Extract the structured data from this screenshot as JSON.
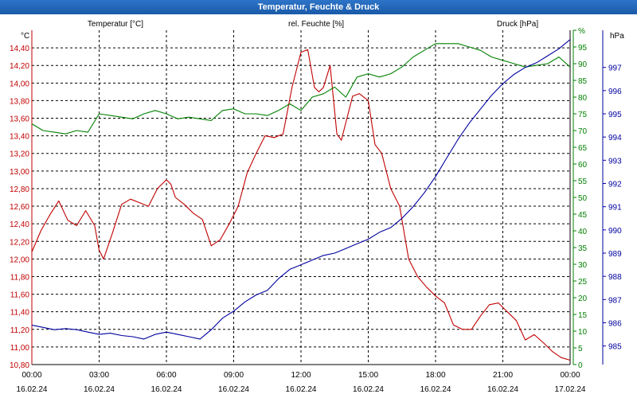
{
  "chart_data": {
    "type": "line",
    "title": "Temperatur, Feuchte & Druck",
    "axis_labels": {
      "temperature": "Temperatur [°C]",
      "humidity": "rel. Feuchte [%]",
      "pressure": "Druck [hPa]",
      "temp_unit": "°C",
      "pressure_unit": "hPa"
    },
    "x_ticks": [
      {
        "time": "00:00",
        "date": "16.02.24"
      },
      {
        "time": "03:00",
        "date": "16.02.24"
      },
      {
        "time": "06:00",
        "date": "16.02.24"
      },
      {
        "time": "09:00",
        "date": "16.02.24"
      },
      {
        "time": "12:00",
        "date": "16.02.24"
      },
      {
        "time": "15:00",
        "date": "16.02.24"
      },
      {
        "time": "18:00",
        "date": "16.02.24"
      },
      {
        "time": "21:00",
        "date": "16.02.24"
      },
      {
        "time": "00:00",
        "date": "17.02.24"
      }
    ],
    "xlim_hours": [
      0,
      24
    ],
    "temp_axis": {
      "ylim": [
        10.8,
        14.6
      ],
      "ticks": [
        "10,80",
        "11,00",
        "11,20",
        "11,40",
        "11,60",
        "11,80",
        "12,00",
        "12,20",
        "12,40",
        "12,60",
        "12,80",
        "13,00",
        "13,20",
        "13,40",
        "13,60",
        "13,80",
        "14,00",
        "14,20",
        "14,40"
      ]
    },
    "humidity_axis": {
      "ylim": [
        0,
        100
      ],
      "ticks": [
        "0",
        "5",
        "10",
        "15",
        "20",
        "25",
        "30",
        "35",
        "40",
        "45",
        "50",
        "55",
        "60",
        "65",
        "70",
        "75",
        "80",
        "85",
        "90",
        "95",
        "%"
      ]
    },
    "pressure_axis": {
      "ylim": [
        984.2,
        998.6
      ],
      "ticks": [
        "985",
        "986",
        "987",
        "988",
        "989",
        "990",
        "991",
        "992",
        "993",
        "994",
        "995",
        "996",
        "997"
      ]
    },
    "colors": {
      "temperature": "#c00000",
      "humidity": "#008000",
      "pressure": "#0000a0",
      "title_bar": "#1f62b3",
      "grid": "#000000"
    },
    "series": [
      {
        "name": "Temperatur",
        "axis": "temperature",
        "x": [
          0,
          0.4,
          0.8,
          1.2,
          1.6,
          2.0,
          2.4,
          2.8,
          3.0,
          3.2,
          3.6,
          4.0,
          4.4,
          4.8,
          5.2,
          5.6,
          6.0,
          6.2,
          6.4,
          6.8,
          7.2,
          7.6,
          8.0,
          8.4,
          8.8,
          9.2,
          9.6,
          10.0,
          10.4,
          10.8,
          11.2,
          11.6,
          12.0,
          12.3,
          12.6,
          12.8,
          13.0,
          13.3,
          13.6,
          13.8,
          14.0,
          14.3,
          14.6,
          15.0,
          15.3,
          15.6,
          16.0,
          16.4,
          16.8,
          17.2,
          17.6,
          18.0,
          18.4,
          18.8,
          19.2,
          19.6,
          20.0,
          20.4,
          20.8,
          21.2,
          21.6,
          22.0,
          22.4,
          22.8,
          23.2,
          23.6,
          24.0
        ],
        "values": [
          12.08,
          12.32,
          12.5,
          12.66,
          12.44,
          12.38,
          12.55,
          12.38,
          12.1,
          12.0,
          12.3,
          12.62,
          12.68,
          12.64,
          12.6,
          12.8,
          12.9,
          12.85,
          12.7,
          12.62,
          12.52,
          12.45,
          12.15,
          12.22,
          12.4,
          12.6,
          12.98,
          13.2,
          13.4,
          13.38,
          13.42,
          13.95,
          14.35,
          14.38,
          13.95,
          13.9,
          13.95,
          14.2,
          13.42,
          13.35,
          13.55,
          13.85,
          13.88,
          13.8,
          13.3,
          13.2,
          12.8,
          12.6,
          12.0,
          11.8,
          11.68,
          11.58,
          11.5,
          11.25,
          11.2,
          11.2,
          11.35,
          11.48,
          11.5,
          11.4,
          11.3,
          11.08,
          11.14,
          11.05,
          10.95,
          10.88,
          10.85
        ]
      },
      {
        "name": "rel. Feuchte",
        "axis": "humidity",
        "x": [
          0,
          0.5,
          1.0,
          1.5,
          2.0,
          2.5,
          3.0,
          3.5,
          4.0,
          4.5,
          5.0,
          5.5,
          6.0,
          6.5,
          7.0,
          7.5,
          8.0,
          8.5,
          9.0,
          9.5,
          10.0,
          10.5,
          11.0,
          11.5,
          12.0,
          12.5,
          13.0,
          13.5,
          14.0,
          14.5,
          15.0,
          15.5,
          16.0,
          16.5,
          17.0,
          17.5,
          18.0,
          18.5,
          19.0,
          19.5,
          20.0,
          20.5,
          21.0,
          21.5,
          22.0,
          22.5,
          23.0,
          23.5,
          24.0
        ],
        "values": [
          72,
          70,
          69.5,
          69,
          70,
          69.5,
          75,
          74.5,
          74,
          73.5,
          75,
          76,
          75,
          73.5,
          74,
          73.5,
          73,
          76,
          76.5,
          75,
          75,
          74.5,
          76,
          78,
          76,
          80,
          81,
          83,
          80,
          86,
          87,
          86,
          87,
          89,
          92,
          94,
          96,
          96,
          96,
          95,
          94,
          92,
          91,
          90,
          89,
          89.5,
          90,
          92,
          89
        ]
      },
      {
        "name": "Druck",
        "axis": "pressure",
        "x": [
          0,
          0.5,
          1.0,
          1.5,
          2.0,
          2.5,
          3.0,
          3.5,
          4.0,
          4.5,
          5.0,
          5.5,
          6.0,
          6.5,
          7.0,
          7.5,
          8.0,
          8.5,
          9.0,
          9.5,
          10.0,
          10.5,
          11.0,
          11.5,
          12.0,
          12.5,
          13.0,
          13.5,
          14.0,
          14.5,
          15.0,
          15.5,
          16.0,
          16.5,
          17.0,
          17.5,
          18.0,
          18.5,
          19.0,
          19.5,
          20.0,
          20.5,
          21.0,
          21.5,
          22.0,
          22.5,
          23.0,
          23.5,
          24.0
        ],
        "values": [
          985.9,
          985.8,
          985.7,
          985.75,
          985.7,
          985.6,
          985.5,
          985.55,
          985.45,
          985.4,
          985.3,
          985.5,
          985.6,
          985.5,
          985.4,
          985.3,
          985.7,
          986.2,
          986.5,
          986.9,
          987.2,
          987.4,
          987.9,
          988.3,
          988.5,
          988.7,
          988.9,
          989.0,
          989.2,
          989.4,
          989.6,
          989.9,
          990.1,
          990.5,
          991.0,
          991.6,
          992.3,
          993.1,
          993.9,
          994.6,
          995.2,
          995.8,
          996.3,
          996.7,
          997.0,
          997.2,
          997.5,
          997.8,
          998.2
        ]
      }
    ]
  }
}
